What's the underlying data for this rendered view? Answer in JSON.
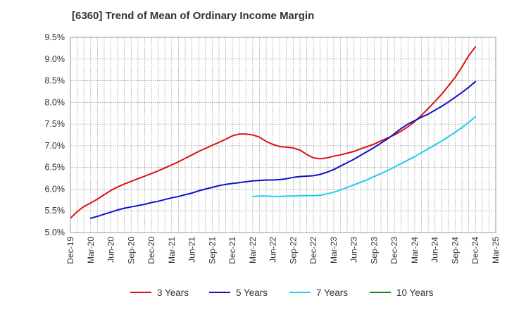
{
  "chart_data": {
    "type": "line",
    "title": "[6360]  Trend of Mean of Ordinary Income Margin",
    "xlabel": "",
    "ylabel": "",
    "ylim": [
      5.0,
      9.5
    ],
    "y_ticks": [
      "5.0%",
      "5.5%",
      "6.0%",
      "6.5%",
      "7.0%",
      "7.5%",
      "8.0%",
      "8.5%",
      "9.0%",
      "9.5%"
    ],
    "x_ticks": [
      "Dec-19",
      "Mar-20",
      "Jun-20",
      "Sep-20",
      "Dec-20",
      "Mar-21",
      "Jun-21",
      "Sep-21",
      "Dec-21",
      "Mar-22",
      "Jun-22",
      "Sep-22",
      "Dec-22",
      "Mar-23",
      "Jun-23",
      "Sep-23",
      "Dec-23",
      "Mar-24",
      "Jun-24",
      "Sep-24",
      "Dec-24",
      "Mar-25"
    ],
    "grid": true,
    "legend_position": "bottom",
    "series": [
      {
        "name": "3 Years",
        "color": "#dd1111",
        "points": [
          [
            "Dec-19",
            5.33
          ],
          [
            "Jan-20",
            5.48
          ],
          [
            "Feb-20",
            5.6
          ],
          [
            "Mar-20",
            5.68
          ],
          [
            "Apr-20",
            5.77
          ],
          [
            "May-20",
            5.87
          ],
          [
            "Jun-20",
            5.97
          ],
          [
            "Jul-20",
            6.05
          ],
          [
            "Aug-20",
            6.12
          ],
          [
            "Sep-20",
            6.18
          ],
          [
            "Oct-20",
            6.24
          ],
          [
            "Nov-20",
            6.3
          ],
          [
            "Dec-20",
            6.36
          ],
          [
            "Jan-21",
            6.42
          ],
          [
            "Feb-21",
            6.49
          ],
          [
            "Mar-21",
            6.56
          ],
          [
            "Apr-21",
            6.63
          ],
          [
            "May-21",
            6.71
          ],
          [
            "Jun-21",
            6.79
          ],
          [
            "Jul-21",
            6.87
          ],
          [
            "Aug-21",
            6.94
          ],
          [
            "Sep-21",
            7.01
          ],
          [
            "Oct-21",
            7.08
          ],
          [
            "Nov-21",
            7.15
          ],
          [
            "Dec-21",
            7.23
          ],
          [
            "Jan-22",
            7.27
          ],
          [
            "Feb-22",
            7.27
          ],
          [
            "Mar-22",
            7.25
          ],
          [
            "Apr-22",
            7.2
          ],
          [
            "May-22",
            7.1
          ],
          [
            "Jun-22",
            7.03
          ],
          [
            "Jul-22",
            6.98
          ],
          [
            "Aug-22",
            6.97
          ],
          [
            "Sep-22",
            6.95
          ],
          [
            "Oct-22",
            6.9
          ],
          [
            "Nov-22",
            6.8
          ],
          [
            "Dec-22",
            6.72
          ],
          [
            "Jan-23",
            6.7
          ],
          [
            "Feb-23",
            6.72
          ],
          [
            "Mar-23",
            6.76
          ],
          [
            "Apr-23",
            6.79
          ],
          [
            "May-23",
            6.83
          ],
          [
            "Jun-23",
            6.87
          ],
          [
            "Jul-23",
            6.93
          ],
          [
            "Aug-23",
            6.98
          ],
          [
            "Sep-23",
            7.04
          ],
          [
            "Oct-23",
            7.11
          ],
          [
            "Nov-23",
            7.18
          ],
          [
            "Dec-23",
            7.25
          ],
          [
            "Jan-24",
            7.34
          ],
          [
            "Feb-24",
            7.44
          ],
          [
            "Mar-24",
            7.56
          ],
          [
            "Apr-24",
            7.7
          ],
          [
            "May-24",
            7.86
          ],
          [
            "Jun-24",
            8.02
          ],
          [
            "Jul-24",
            8.19
          ],
          [
            "Aug-24",
            8.38
          ],
          [
            "Sep-24",
            8.58
          ],
          [
            "Oct-24",
            8.82
          ],
          [
            "Nov-24",
            9.08
          ],
          [
            "Dec-24",
            9.28
          ]
        ]
      },
      {
        "name": "5 Years",
        "color": "#1111cc",
        "points": [
          [
            "Mar-20",
            5.33
          ],
          [
            "Apr-20",
            5.37
          ],
          [
            "May-20",
            5.42
          ],
          [
            "Jun-20",
            5.47
          ],
          [
            "Jul-20",
            5.52
          ],
          [
            "Aug-20",
            5.56
          ],
          [
            "Sep-20",
            5.59
          ],
          [
            "Oct-20",
            5.62
          ],
          [
            "Nov-20",
            5.65
          ],
          [
            "Dec-20",
            5.69
          ],
          [
            "Jan-21",
            5.72
          ],
          [
            "Feb-21",
            5.76
          ],
          [
            "Mar-21",
            5.8
          ],
          [
            "Apr-21",
            5.83
          ],
          [
            "May-21",
            5.87
          ],
          [
            "Jun-21",
            5.91
          ],
          [
            "Jul-21",
            5.96
          ],
          [
            "Aug-21",
            6.0
          ],
          [
            "Sep-21",
            6.04
          ],
          [
            "Oct-21",
            6.08
          ],
          [
            "Nov-21",
            6.11
          ],
          [
            "Dec-21",
            6.13
          ],
          [
            "Jan-22",
            6.15
          ],
          [
            "Feb-22",
            6.17
          ],
          [
            "Mar-22",
            6.19
          ],
          [
            "Apr-22",
            6.2
          ],
          [
            "May-22",
            6.21
          ],
          [
            "Jun-22",
            6.21
          ],
          [
            "Jul-22",
            6.22
          ],
          [
            "Aug-22",
            6.24
          ],
          [
            "Sep-22",
            6.27
          ],
          [
            "Oct-22",
            6.29
          ],
          [
            "Nov-22",
            6.3
          ],
          [
            "Dec-22",
            6.31
          ],
          [
            "Jan-23",
            6.34
          ],
          [
            "Feb-23",
            6.39
          ],
          [
            "Mar-23",
            6.45
          ],
          [
            "Apr-23",
            6.53
          ],
          [
            "May-23",
            6.61
          ],
          [
            "Jun-23",
            6.69
          ],
          [
            "Jul-23",
            6.78
          ],
          [
            "Aug-23",
            6.87
          ],
          [
            "Sep-23",
            6.96
          ],
          [
            "Oct-23",
            7.06
          ],
          [
            "Nov-23",
            7.16
          ],
          [
            "Dec-23",
            7.28
          ],
          [
            "Jan-24",
            7.4
          ],
          [
            "Feb-24",
            7.5
          ],
          [
            "Mar-24",
            7.58
          ],
          [
            "Apr-24",
            7.66
          ],
          [
            "May-24",
            7.73
          ],
          [
            "Jun-24",
            7.82
          ],
          [
            "Jul-24",
            7.91
          ],
          [
            "Aug-24",
            8.01
          ],
          [
            "Sep-24",
            8.12
          ],
          [
            "Oct-24",
            8.23
          ],
          [
            "Nov-24",
            8.35
          ],
          [
            "Dec-24",
            8.48
          ]
        ]
      },
      {
        "name": "7 Years",
        "color": "#22ccee",
        "points": [
          [
            "Mar-22",
            5.83
          ],
          [
            "Apr-22",
            5.84
          ],
          [
            "May-22",
            5.84
          ],
          [
            "Jun-22",
            5.83
          ],
          [
            "Jul-22",
            5.83
          ],
          [
            "Aug-22",
            5.84
          ],
          [
            "Sep-22",
            5.84
          ],
          [
            "Oct-22",
            5.85
          ],
          [
            "Nov-22",
            5.85
          ],
          [
            "Dec-22",
            5.85
          ],
          [
            "Jan-23",
            5.86
          ],
          [
            "Feb-23",
            5.89
          ],
          [
            "Mar-23",
            5.93
          ],
          [
            "Apr-23",
            5.98
          ],
          [
            "May-23",
            6.04
          ],
          [
            "Jun-23",
            6.1
          ],
          [
            "Jul-23",
            6.16
          ],
          [
            "Aug-23",
            6.22
          ],
          [
            "Sep-23",
            6.29
          ],
          [
            "Oct-23",
            6.36
          ],
          [
            "Nov-23",
            6.43
          ],
          [
            "Dec-23",
            6.51
          ],
          [
            "Jan-24",
            6.59
          ],
          [
            "Feb-24",
            6.67
          ],
          [
            "Mar-24",
            6.75
          ],
          [
            "Apr-24",
            6.84
          ],
          [
            "May-24",
            6.93
          ],
          [
            "Jun-24",
            7.02
          ],
          [
            "Jul-24",
            7.11
          ],
          [
            "Aug-24",
            7.21
          ],
          [
            "Sep-24",
            7.31
          ],
          [
            "Oct-24",
            7.42
          ],
          [
            "Nov-24",
            7.54
          ],
          [
            "Dec-24",
            7.67
          ]
        ]
      },
      {
        "name": "10 Years",
        "color": "#118811",
        "points": []
      }
    ]
  }
}
